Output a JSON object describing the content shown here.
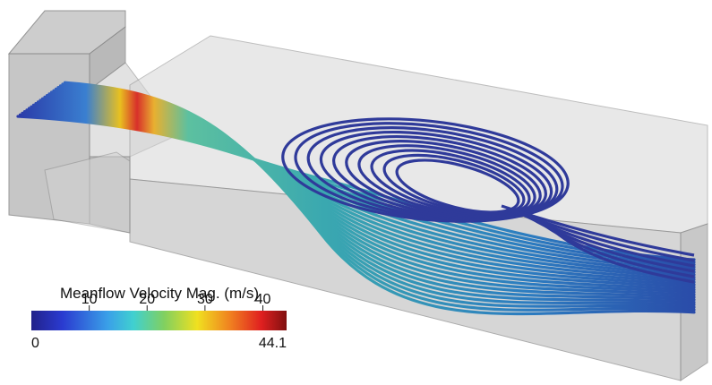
{
  "colorbar": {
    "title": "Meanflow Velocity Mag. (m/s)",
    "min": 0,
    "max": 44.1,
    "ticks": [
      10,
      20,
      30,
      40
    ]
  }
}
